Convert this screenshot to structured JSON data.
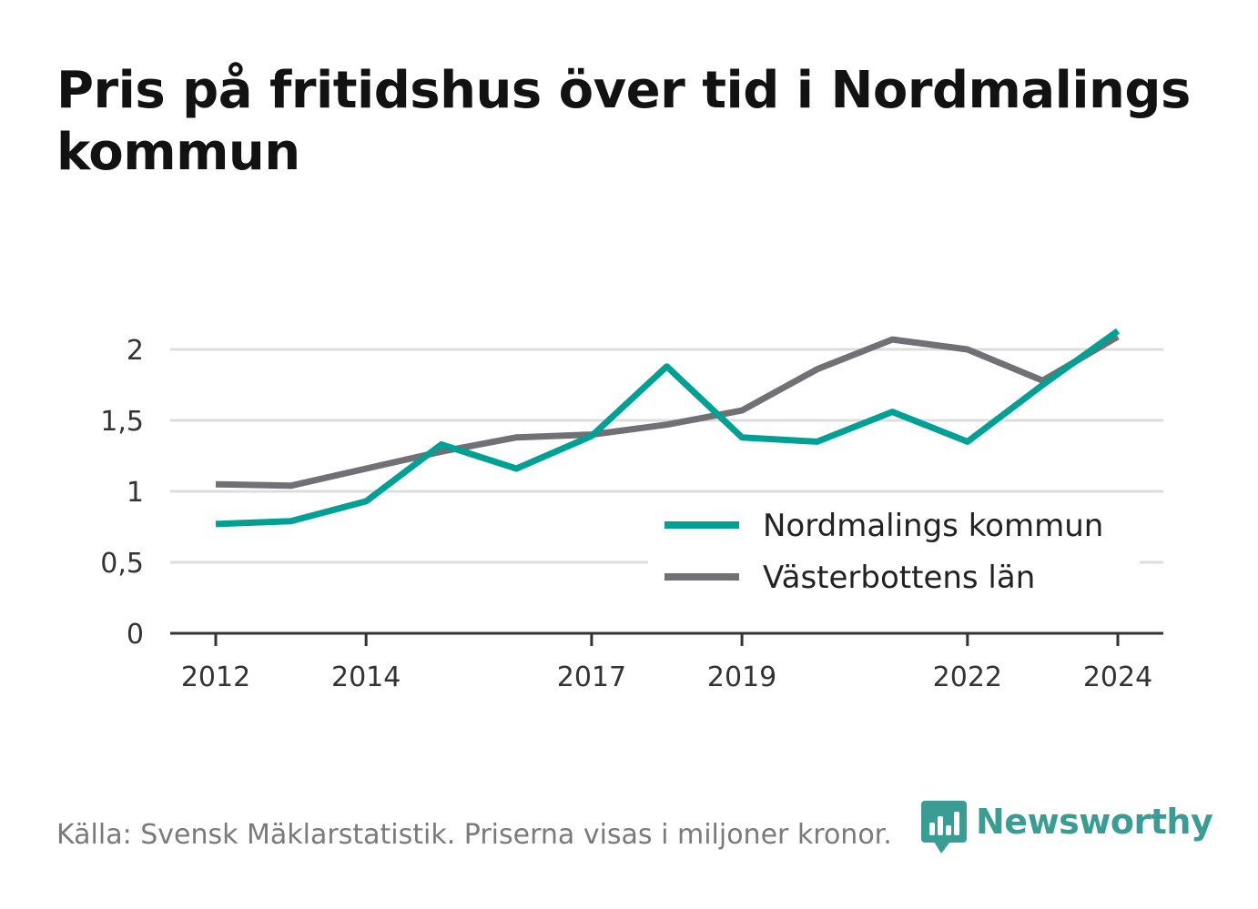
{
  "title": "Pris på fritidshus över tid i Nordmalings kommun",
  "source": "Källa: Svensk Mäklarstatistik. Priserna visas i miljoner kronor.",
  "brand": {
    "name": "Newsworthy",
    "icon": "bar-chart-speech-bubble-icon"
  },
  "colors": {
    "nordmaling": "#00a095",
    "vasterbotten": "#717075",
    "grid": "#dddddd",
    "axis": "#333333",
    "brand": "#3a9d93"
  },
  "chart_data": {
    "type": "line",
    "x": [
      2012,
      2013,
      2014,
      2015,
      2016,
      2017,
      2018,
      2019,
      2020,
      2021,
      2022,
      2023,
      2024
    ],
    "xticks": [
      "2012",
      "2014",
      "2017",
      "2019",
      "2022",
      "2024"
    ],
    "xlim": [
      2011.7,
      2024.6
    ],
    "yticks": [
      "0",
      "0,5",
      "1",
      "1,5",
      "2"
    ],
    "ylim": [
      0,
      2.2
    ],
    "grid": true,
    "legend_position": "bottom-right",
    "series": [
      {
        "name": "Nordmalings kommun",
        "values": [
          0.77,
          0.79,
          0.93,
          1.33,
          1.16,
          1.39,
          1.88,
          1.38,
          1.35,
          1.56,
          1.35,
          1.75,
          2.13
        ]
      },
      {
        "name": "Västerbottens län",
        "values": [
          1.05,
          1.04,
          1.16,
          1.28,
          1.38,
          1.4,
          1.47,
          1.57,
          1.86,
          2.07,
          2.0,
          1.78,
          2.09
        ]
      }
    ]
  }
}
